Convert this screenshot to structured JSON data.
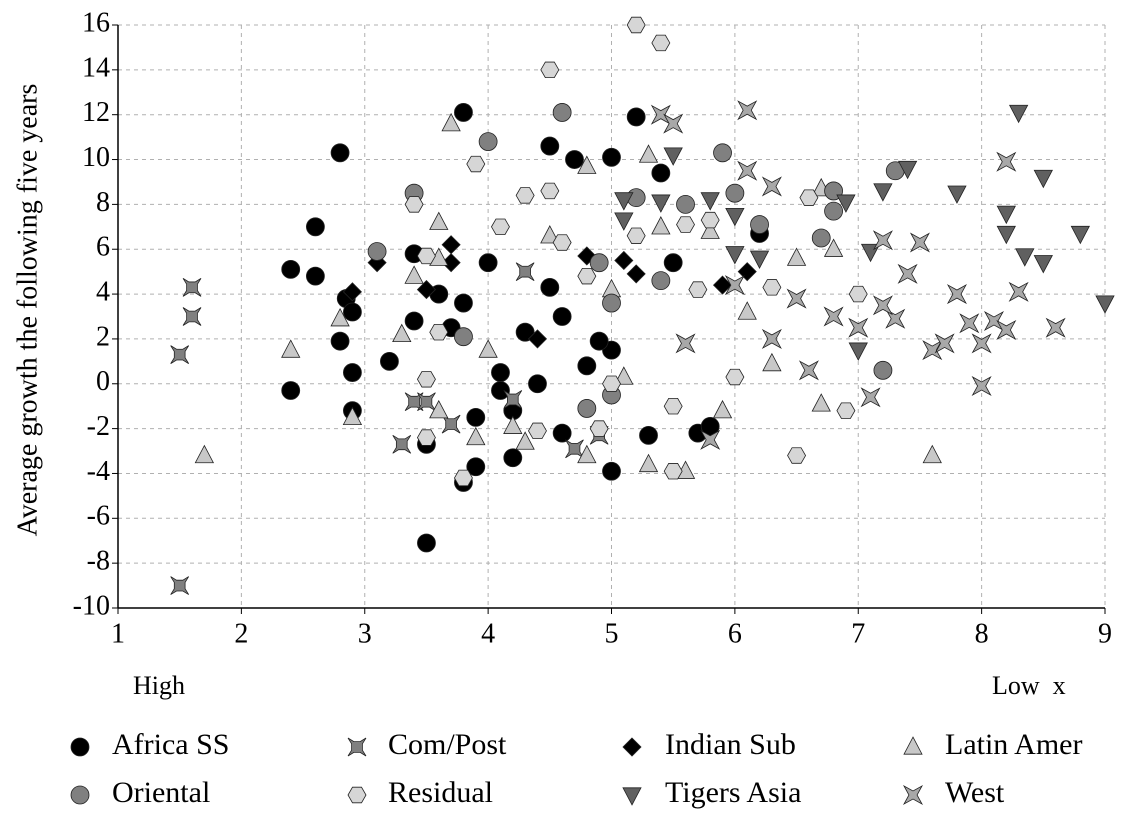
{
  "chart_data": {
    "type": "scatter",
    "ylabel": "Average growth the following five years",
    "annotations": [
      "High",
      "Low  x"
    ],
    "xlim": [
      1,
      9
    ],
    "xticks": [
      1,
      2,
      3,
      4,
      5,
      6,
      7,
      8,
      9
    ],
    "ylim": [
      -10,
      16
    ],
    "yticks": [
      -10,
      -8,
      -6,
      -4,
      -2,
      0,
      2,
      4,
      6,
      8,
      10,
      12,
      14,
      16
    ],
    "grid": true,
    "legend": "bottom",
    "series": [
      {
        "name": "Africa SS",
        "color": "#000000",
        "marker": "circle",
        "x": [
          2.4,
          2.4,
          2.6,
          2.6,
          2.8,
          2.85,
          2.8,
          2.9,
          2.9,
          2.9,
          3.2,
          3.4,
          3.4,
          3.5,
          3.5,
          3.6,
          3.7,
          3.8,
          3.8,
          3.8,
          3.9,
          3.9,
          4.0,
          4.1,
          4.1,
          4.2,
          4.2,
          4.3,
          4.4,
          4.5,
          4.5,
          4.6,
          4.7,
          4.8,
          5.0,
          5.0,
          5.0,
          5.2,
          5.3,
          5.4,
          5.5,
          5.7,
          5.8,
          6.2,
          4.6,
          4.9
        ],
        "values": [
          5.1,
          -0.3,
          7.0,
          4.8,
          10.3,
          3.8,
          1.9,
          3.2,
          0.5,
          -1.2,
          1.0,
          5.8,
          2.8,
          -2.7,
          -7.1,
          4.0,
          2.5,
          12.1,
          3.6,
          -4.4,
          -1.5,
          -3.7,
          5.4,
          0.5,
          -0.3,
          -3.3,
          -1.2,
          2.3,
          0.0,
          10.6,
          4.3,
          -2.2,
          10.0,
          0.8,
          10.1,
          -3.9,
          1.5,
          11.9,
          -2.3,
          9.4,
          5.4,
          -2.2,
          -1.9,
          6.7,
          3.0,
          1.9
        ]
      },
      {
        "name": "Com/Post",
        "color": "#808080",
        "marker": "maltese",
        "x": [
          1.5,
          1.5,
          1.6,
          1.6,
          3.3,
          3.4,
          3.5,
          3.7,
          4.2,
          4.3,
          4.7,
          4.9
        ],
        "values": [
          1.3,
          -9.0,
          4.3,
          3.0,
          -2.7,
          -0.8,
          -0.8,
          -1.8,
          -0.7,
          5.0,
          -2.9,
          -2.3
        ]
      },
      {
        "name": "Indian Sub",
        "color": "#000000",
        "marker": "diamond",
        "x": [
          2.9,
          3.1,
          3.5,
          3.7,
          3.7,
          4.8,
          5.1,
          5.2,
          6.1,
          5.9,
          4.4
        ],
        "values": [
          4.1,
          5.4,
          4.2,
          6.2,
          5.4,
          5.7,
          5.5,
          4.9,
          5.0,
          4.4,
          2.0
        ]
      },
      {
        "name": "Latin Amer",
        "color": "#c8c8c8",
        "marker": "triangle",
        "x": [
          1.7,
          2.4,
          2.8,
          2.9,
          3.3,
          3.4,
          3.6,
          3.6,
          3.7,
          3.9,
          4.2,
          4.3,
          4.5,
          4.8,
          4.8,
          5.1,
          5.3,
          5.3,
          5.4,
          5.6,
          5.8,
          5.9,
          6.3,
          6.5,
          6.7,
          6.7,
          6.8,
          7.6,
          6.1,
          5.0,
          4.0,
          3.6
        ],
        "values": [
          -3.2,
          1.5,
          2.9,
          -1.5,
          2.2,
          4.8,
          7.2,
          5.6,
          11.6,
          -2.4,
          -1.9,
          -2.6,
          6.6,
          9.7,
          -3.2,
          0.3,
          10.2,
          -3.6,
          7.0,
          -3.9,
          6.8,
          -1.2,
          0.9,
          5.6,
          8.7,
          -0.9,
          6.0,
          -3.2,
          3.2,
          4.2,
          1.5,
          -1.2
        ]
      },
      {
        "name": "Oriental",
        "color": "#808080",
        "marker": "circle",
        "x": [
          3.1,
          3.4,
          4.0,
          4.6,
          4.9,
          5.0,
          5.2,
          5.6,
          5.9,
          6.0,
          6.2,
          6.8,
          6.8,
          7.3,
          7.2,
          5.0,
          4.8,
          6.7,
          5.4,
          3.8
        ],
        "values": [
          5.9,
          8.5,
          10.8,
          12.1,
          5.4,
          3.6,
          8.3,
          8.0,
          10.3,
          8.5,
          7.1,
          7.7,
          8.6,
          9.5,
          0.6,
          -0.5,
          -1.1,
          6.5,
          4.6,
          2.1
        ]
      },
      {
        "name": "Residual",
        "color": "#d6d6d6",
        "marker": "hexagon",
        "x": [
          3.5,
          3.5,
          3.5,
          3.4,
          3.9,
          3.8,
          4.3,
          4.5,
          4.5,
          5.2,
          5.4,
          5.0,
          5.5,
          4.4,
          4.9,
          5.5,
          5.8,
          6.0,
          6.5,
          6.9,
          6.6,
          4.1,
          4.6,
          5.6,
          5.2,
          6.3,
          7.0,
          4.8,
          5.7,
          3.6
        ],
        "values": [
          -2.4,
          0.2,
          5.7,
          8.0,
          9.8,
          -4.2,
          8.4,
          14.0,
          8.6,
          16.0,
          15.2,
          0.0,
          -3.9,
          -2.1,
          -2.0,
          -1.0,
          7.3,
          0.3,
          -3.2,
          -1.2,
          8.3,
          7.0,
          6.3,
          7.1,
          6.6,
          4.3,
          4.0,
          4.8,
          4.2,
          2.3
        ]
      },
      {
        "name": "Tigers Asia",
        "color": "#606060",
        "marker": "downtriangle",
        "x": [
          5.1,
          5.1,
          5.4,
          5.5,
          5.8,
          6.0,
          6.0,
          6.9,
          7.1,
          7.2,
          7.4,
          7.8,
          8.2,
          8.2,
          8.3,
          8.35,
          8.5,
          8.5,
          8.8,
          9.0,
          7.0,
          6.2
        ],
        "values": [
          8.2,
          7.3,
          8.1,
          10.2,
          8.2,
          7.5,
          5.8,
          8.1,
          5.9,
          8.6,
          9.6,
          8.5,
          7.6,
          6.7,
          12.1,
          5.7,
          9.2,
          5.4,
          6.7,
          3.6,
          1.5,
          5.6
        ]
      },
      {
        "name": "West",
        "color": "#a8a8a8",
        "marker": "xcross",
        "x": [
          5.4,
          5.5,
          6.1,
          6.1,
          6.3,
          7.2,
          7.4,
          7.5,
          7.8,
          7.9,
          8.0,
          8.0,
          8.1,
          8.2,
          8.2,
          8.3,
          8.6,
          7.1,
          6.5,
          6.8,
          7.0,
          7.3,
          7.6,
          6.3,
          5.8,
          6.6,
          7.7,
          6.0,
          5.6,
          7.2
        ],
        "values": [
          12.0,
          11.6,
          12.2,
          9.5,
          8.8,
          6.4,
          4.9,
          6.3,
          4.0,
          2.7,
          1.8,
          -0.1,
          2.8,
          9.9,
          2.4,
          4.1,
          2.5,
          -0.6,
          3.8,
          3.0,
          2.5,
          2.9,
          1.5,
          2.0,
          -2.5,
          0.6,
          1.8,
          4.4,
          1.8,
          3.5
        ]
      }
    ]
  }
}
